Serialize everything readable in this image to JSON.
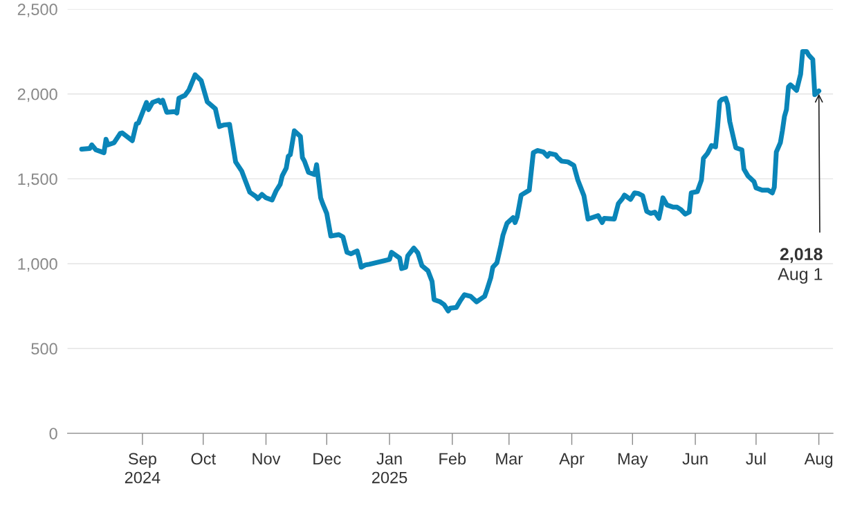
{
  "chart_data": {
    "type": "line",
    "x": [
      "2024-08-02",
      "2024-08-06",
      "2024-08-07",
      "2024-08-09",
      "2024-08-13",
      "2024-08-14",
      "2024-08-15",
      "2024-08-18",
      "2024-08-21",
      "2024-08-22",
      "2024-08-27",
      "2024-08-29",
      "2024-08-30",
      "2024-09-03",
      "2024-09-04",
      "2024-09-06",
      "2024-09-09",
      "2024-09-10",
      "2024-09-11",
      "2024-09-13",
      "2024-09-17",
      "2024-09-18",
      "2024-09-19",
      "2024-09-22",
      "2024-09-24",
      "2024-09-27",
      "2024-09-30",
      "2024-10-03",
      "2024-10-07",
      "2024-10-09",
      "2024-10-11",
      "2024-10-14",
      "2024-10-17",
      "2024-10-20",
      "2024-10-22",
      "2024-10-24",
      "2024-10-27",
      "2024-10-28",
      "2024-10-30",
      "2024-11-01",
      "2024-11-04",
      "2024-11-06",
      "2024-11-08",
      "2024-11-09",
      "2024-11-11",
      "2024-11-12",
      "2024-11-13",
      "2024-11-15",
      "2024-11-18",
      "2024-11-19",
      "2024-11-20",
      "2024-11-22",
      "2024-11-25",
      "2024-11-26",
      "2024-11-28",
      "2024-11-29",
      "2024-12-01",
      "2024-12-03",
      "2024-12-07",
      "2024-12-09",
      "2024-12-11",
      "2024-12-13",
      "2024-12-16",
      "2024-12-17",
      "2024-12-18",
      "2024-12-20",
      "2024-12-22",
      "2025-01-01",
      "2025-01-02",
      "2025-01-06",
      "2025-01-07",
      "2025-01-09",
      "2025-01-10",
      "2025-01-13",
      "2025-01-15",
      "2025-01-17",
      "2025-01-20",
      "2025-01-22",
      "2025-01-23",
      "2025-01-26",
      "2025-01-28",
      "2025-01-30",
      "2025-01-31",
      "2025-02-03",
      "2025-02-05",
      "2025-02-07",
      "2025-02-10",
      "2025-02-13",
      "2025-02-16",
      "2025-02-17",
      "2025-02-18",
      "2025-02-20",
      "2025-02-21",
      "2025-02-23",
      "2025-02-25",
      "2025-02-26",
      "2025-02-28",
      "2025-03-03",
      "2025-03-04",
      "2025-03-05",
      "2025-03-07",
      "2025-03-11",
      "2025-03-13",
      "2025-03-15",
      "2025-03-18",
      "2025-03-20",
      "2025-03-21",
      "2025-03-24",
      "2025-03-25",
      "2025-03-27",
      "2025-03-30",
      "2025-04-02",
      "2025-04-04",
      "2025-04-07",
      "2025-04-09",
      "2025-04-11",
      "2025-04-14",
      "2025-04-16",
      "2025-04-17",
      "2025-04-22",
      "2025-04-24",
      "2025-04-26",
      "2025-04-27",
      "2025-04-30",
      "2025-05-02",
      "2025-05-04",
      "2025-05-06",
      "2025-05-08",
      "2025-05-10",
      "2025-05-12",
      "2025-05-14",
      "2025-05-15",
      "2025-05-16",
      "2025-05-18",
      "2025-05-21",
      "2025-05-23",
      "2025-05-25",
      "2025-05-27",
      "2025-05-29",
      "2025-05-30",
      "2025-06-02",
      "2025-06-04",
      "2025-06-05",
      "2025-06-07",
      "2025-06-09",
      "2025-06-11",
      "2025-06-12",
      "2025-06-13",
      "2025-06-14",
      "2025-06-16",
      "2025-06-17",
      "2025-06-18",
      "2025-06-20",
      "2025-06-21",
      "2025-06-24",
      "2025-06-25",
      "2025-06-27",
      "2025-06-30",
      "2025-07-01",
      "2025-07-04",
      "2025-07-07",
      "2025-07-09",
      "2025-07-10",
      "2025-07-11",
      "2025-07-13",
      "2025-07-14",
      "2025-07-15",
      "2025-07-16",
      "2025-07-17",
      "2025-07-18",
      "2025-07-20",
      "2025-07-21",
      "2025-07-23",
      "2025-07-24",
      "2025-07-26",
      "2025-07-27",
      "2025-07-29",
      "2025-07-30",
      "2025-08-01"
    ],
    "series": [
      {
        "color": "#0a85b8",
        "values": [
          1675,
          1679,
          1700,
          1671,
          1654,
          1733,
          1700,
          1713,
          1767,
          1771,
          1725,
          1825,
          1829,
          1950,
          1908,
          1950,
          1963,
          1950,
          1963,
          1892,
          1896,
          1888,
          1975,
          1992,
          2025,
          2113,
          2079,
          1954,
          1913,
          1808,
          1817,
          1821,
          1600,
          1546,
          1483,
          1421,
          1396,
          1383,
          1408,
          1388,
          1375,
          1429,
          1467,
          1517,
          1563,
          1633,
          1642,
          1783,
          1750,
          1625,
          1604,
          1538,
          1525,
          1583,
          1388,
          1354,
          1296,
          1163,
          1171,
          1158,
          1067,
          1058,
          1075,
          1033,
          979,
          992,
          996,
          1025,
          1067,
          1033,
          971,
          979,
          1046,
          1092,
          1063,
          988,
          958,
          896,
          788,
          775,
          758,
          721,
          738,
          742,
          783,
          817,
          808,
          775,
          800,
          808,
          842,
          917,
          979,
          1004,
          1108,
          1167,
          1238,
          1271,
          1242,
          1275,
          1404,
          1433,
          1654,
          1667,
          1658,
          1633,
          1650,
          1642,
          1625,
          1604,
          1600,
          1579,
          1492,
          1400,
          1263,
          1271,
          1283,
          1242,
          1267,
          1263,
          1354,
          1383,
          1404,
          1379,
          1417,
          1413,
          1400,
          1308,
          1296,
          1304,
          1267,
          1321,
          1388,
          1346,
          1333,
          1333,
          1317,
          1292,
          1304,
          1417,
          1425,
          1492,
          1621,
          1650,
          1696,
          1688,
          1808,
          1954,
          1967,
          1975,
          1938,
          1838,
          1733,
          1683,
          1671,
          1558,
          1517,
          1483,
          1446,
          1433,
          1433,
          1417,
          1450,
          1658,
          1713,
          1783,
          1867,
          1908,
          2042,
          2054,
          2033,
          2021,
          2117,
          2250,
          2250,
          2229,
          2204,
          1996,
          2018
        ]
      }
    ],
    "xlim": [
      "2024-07-26",
      "2025-08-08"
    ],
    "xticks": [
      {
        "value": "2024-09-01",
        "label": "Sep\n2024"
      },
      {
        "value": "2024-10-01",
        "label": "Oct"
      },
      {
        "value": "2024-11-01",
        "label": "Nov"
      },
      {
        "value": "2024-12-01",
        "label": "Dec"
      },
      {
        "value": "2025-01-01",
        "label": "Jan\n2025"
      },
      {
        "value": "2025-02-01",
        "label": "Feb"
      },
      {
        "value": "2025-03-01",
        "label": "Mar"
      },
      {
        "value": "2025-04-01",
        "label": "Apr"
      },
      {
        "value": "2025-05-01",
        "label": "May"
      },
      {
        "value": "2025-06-01",
        "label": "Jun"
      },
      {
        "value": "2025-07-01",
        "label": "Jul"
      },
      {
        "value": "2025-08-01",
        "label": "Aug"
      }
    ],
    "ylim": [
      0,
      2500
    ],
    "yticks": [
      0,
      500,
      {
        "value": 1000,
        "label": "1,000"
      },
      {
        "value": 1500,
        "label": "1,500"
      },
      {
        "value": 2000,
        "label": "2,000"
      },
      {
        "value": 2500,
        "label": "2,500"
      }
    ],
    "grid": "y",
    "legend": false,
    "marker": "none",
    "line_style": "solid",
    "annotations": [
      {
        "text": "2,018",
        "x": "2025-08-01",
        "y": 2018
      },
      "Aug 1"
    ]
  }
}
